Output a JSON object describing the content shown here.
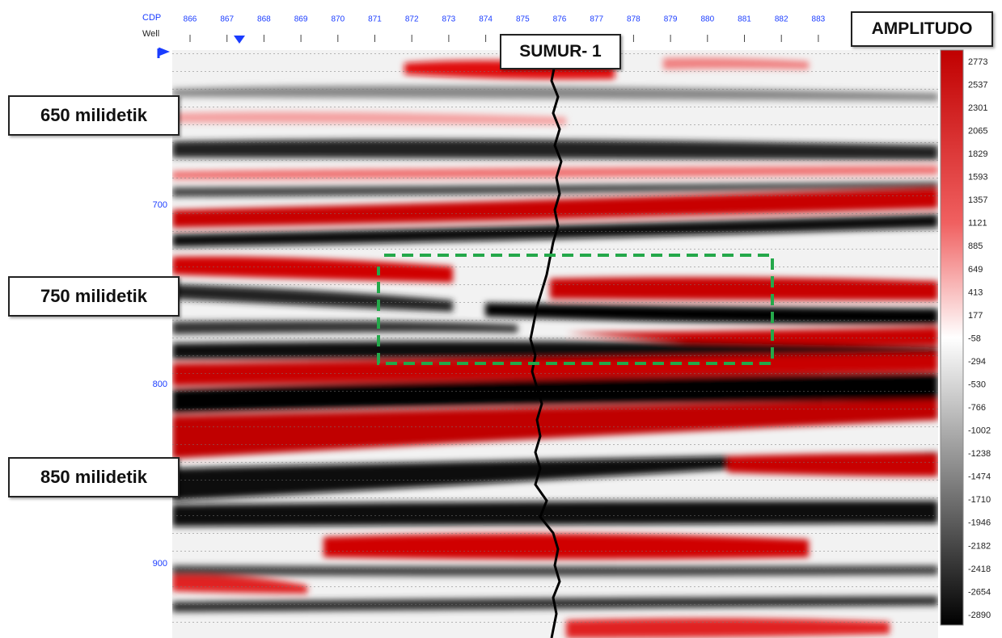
{
  "header": {
    "cdp_label": "CDP",
    "well_label": "Well",
    "cdp_numbers": [
      "866",
      "867",
      "868",
      "869",
      "870",
      "871",
      "872",
      "873",
      "874",
      "875",
      "876",
      "877",
      "878",
      "879",
      "880",
      "881",
      "882",
      "883"
    ]
  },
  "time_axis": {
    "labels": [
      "700",
      "800",
      "900"
    ]
  },
  "callouts": {
    "well_name": "SUMUR- 1",
    "times": [
      "650 milidetik",
      "750 milidetik",
      "850 milidetik"
    ]
  },
  "colorbar": {
    "title": "AMPLITUDO",
    "labels": [
      "2773",
      "2537",
      "2301",
      "2065",
      "1829",
      "1593",
      "1357",
      "1121",
      "885",
      "649",
      "413",
      "177",
      "-58",
      "-294",
      "-530",
      "-766",
      "-1002",
      "-1238",
      "-1474",
      "-1710",
      "-1946",
      "-2182",
      "-2418",
      "-2654",
      "-2890"
    ]
  }
}
